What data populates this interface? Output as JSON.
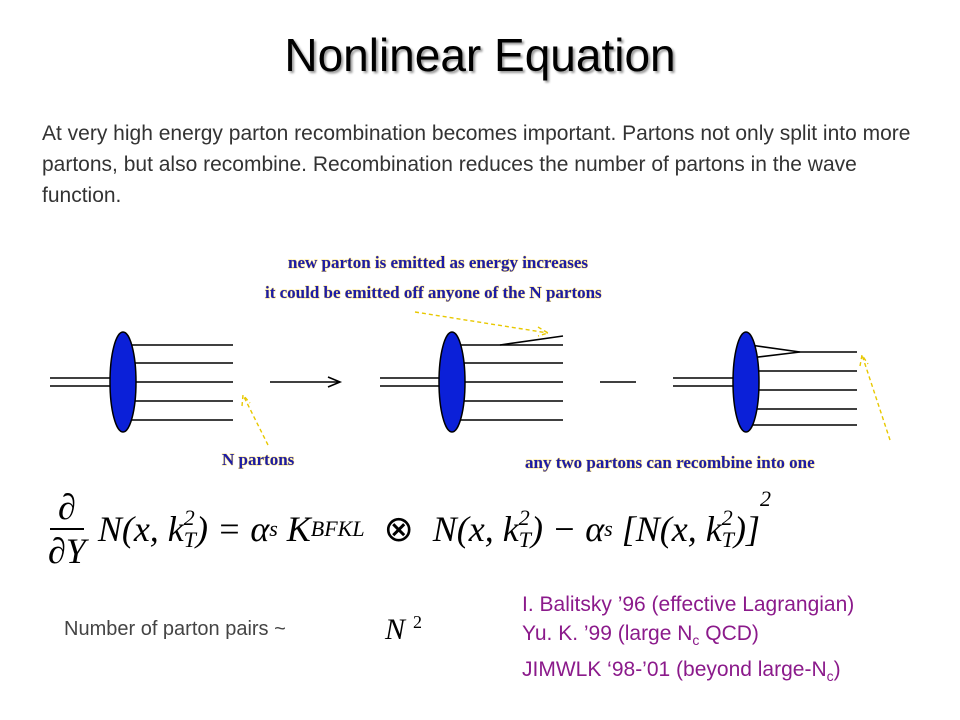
{
  "title": "Nonlinear Equation",
  "intro": "At very high energy parton recombination becomes important. Partons not only split into more partons, but also recombine. Recombination reduces the number of partons in the wave function.",
  "diagram": {
    "labels": [
      "new parton is emitted as energy increases",
      "it could be emitted off anyone of the N partons",
      "N partons",
      "any two partons can recombine into one"
    ]
  },
  "equation": {
    "numerator": "∂",
    "denominator": "∂Y",
    "parts": [
      "N(x, k",
      "T",
      "2",
      ") = α",
      "s",
      " K",
      "BFKL",
      " ⊗ ",
      "N(x, k",
      "T",
      "2",
      ") − α",
      "s",
      " [N(x, k",
      "T",
      "2",
      ")]",
      "2"
    ]
  },
  "pairs": {
    "text": "Number of parton pairs ~",
    "symbol": "N",
    "power": "2"
  },
  "references": [
    [
      "I. Balitsky ’96 (effective Lagrangian)"
    ],
    [
      "Yu. K. ’99 (large N",
      "c",
      " QCD)"
    ],
    [
      "JIMWLK ‘98-’01 (beyond large-N",
      "c",
      ")"
    ]
  ]
}
